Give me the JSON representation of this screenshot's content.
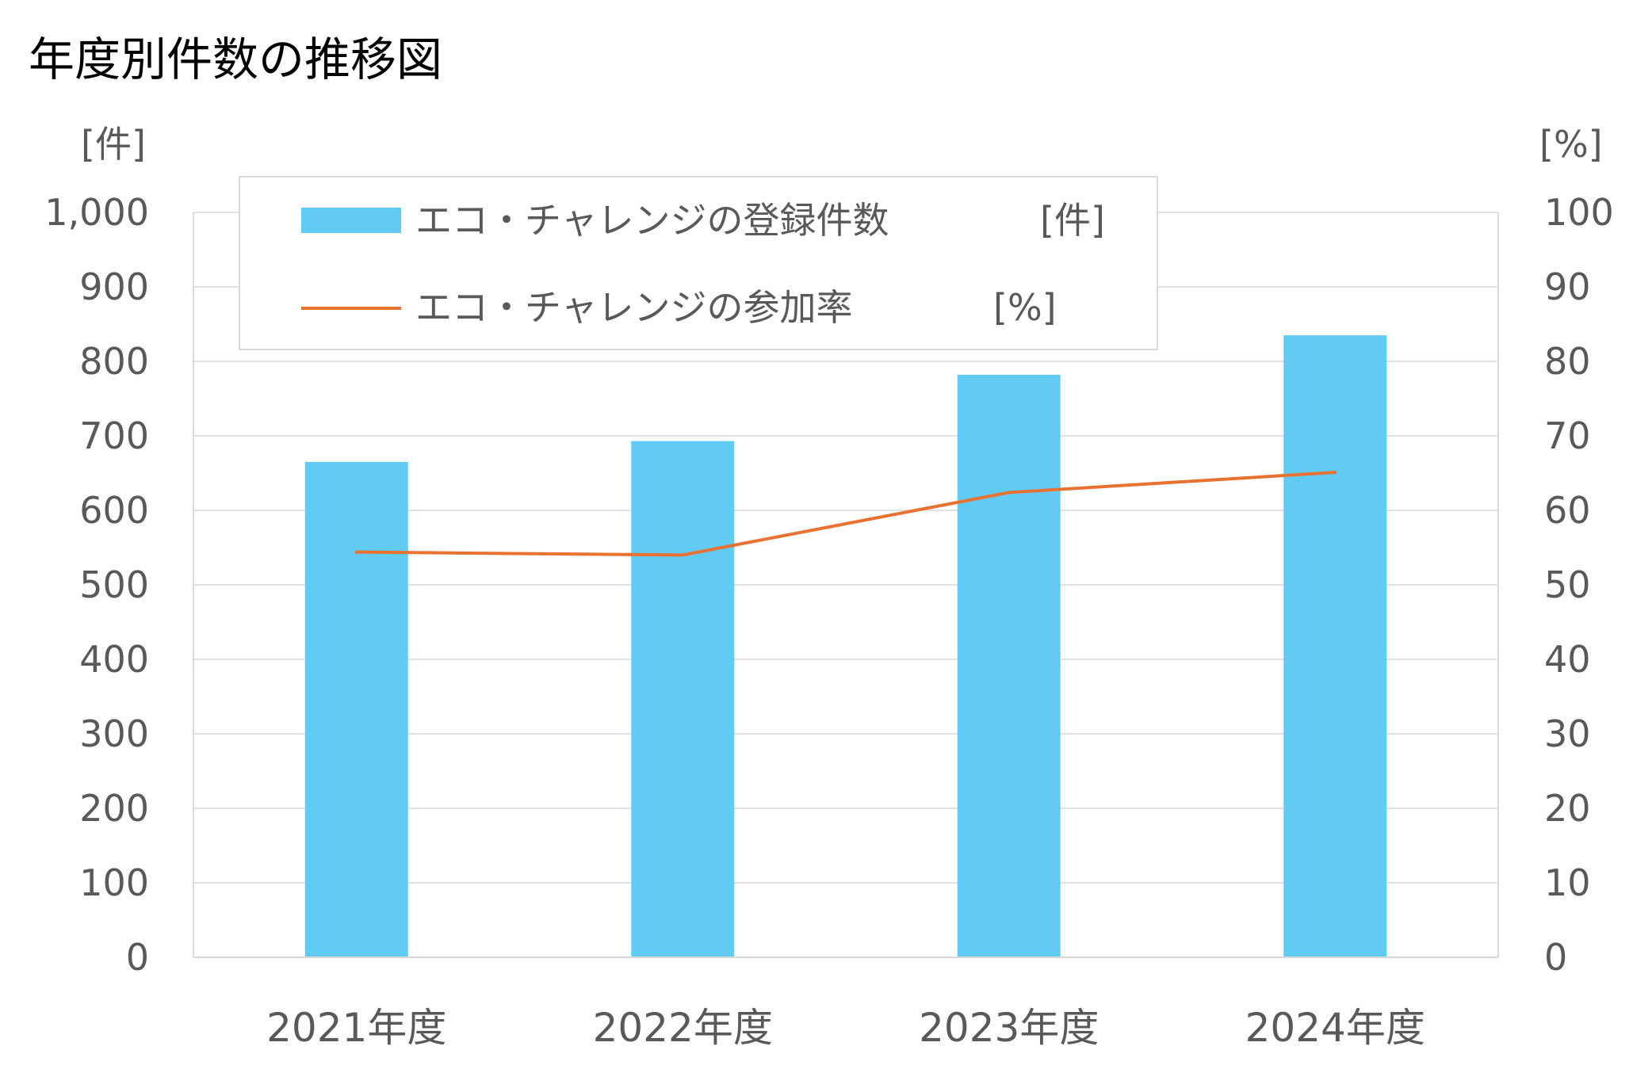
{
  "chart_data": {
    "type": "bar",
    "title": "年度別件数の推移図",
    "categories": [
      "2021年度",
      "2022年度",
      "2023年度",
      "2024年度"
    ],
    "y_left": {
      "unit_label": "[件]",
      "ylim": [
        0,
        1000
      ],
      "ticks": [
        "0",
        "100",
        "200",
        "300",
        "400",
        "500",
        "600",
        "700",
        "800",
        "900",
        "1,000"
      ]
    },
    "y_right": {
      "unit_label": "[%]",
      "ylim": [
        0,
        100
      ],
      "ticks": [
        "0",
        "10",
        "20",
        "30",
        "40",
        "50",
        "60",
        "70",
        "80",
        "90",
        "100"
      ]
    },
    "series": [
      {
        "name": "エコ・チャレンジの登録件数",
        "unit": "[件]",
        "type": "bar",
        "axis": "left",
        "color": "#61CBF4",
        "values": [
          665,
          693,
          782,
          835
        ]
      },
      {
        "name": "エコ・チャレンジの参加率",
        "unit": "[%]",
        "type": "line",
        "axis": "right",
        "color": "#E97132",
        "values": [
          54.4,
          54.0,
          62.4,
          65.1
        ]
      }
    ],
    "grid": true,
    "legend_position": "top-left"
  }
}
